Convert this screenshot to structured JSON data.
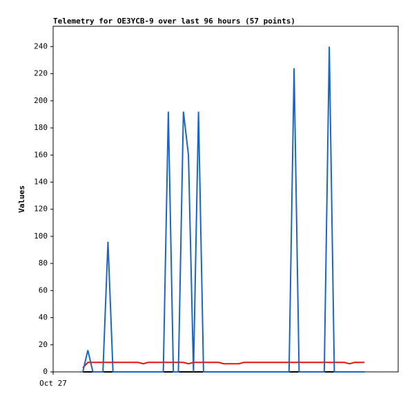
{
  "chart_data": {
    "type": "line",
    "title": "Telemetry for OE3YCB-9 over last 96 hours (57 points)",
    "y_label": "Values",
    "x": [
      0,
      1,
      2,
      3,
      4,
      5,
      6,
      7,
      8,
      9,
      10,
      11,
      12,
      13,
      14,
      15,
      16,
      17,
      18,
      19,
      20,
      21,
      22,
      23,
      24,
      25,
      26,
      27,
      28,
      29,
      30,
      31,
      32,
      33,
      34,
      35,
      36,
      37,
      38,
      39,
      40,
      41,
      42,
      43,
      44,
      45,
      46,
      47,
      48,
      49,
      50,
      51,
      52,
      53,
      54,
      55,
      56
    ],
    "xlim": [
      -5.9,
      62.7
    ],
    "xticks": [
      {
        "value": -5.9,
        "label": "Oct 27"
      }
    ],
    "ylim": [
      0,
      255
    ],
    "yticks": [
      0,
      20,
      40,
      60,
      80,
      100,
      120,
      140,
      160,
      180,
      200,
      220,
      240
    ],
    "series": [
      {
        "color": "#000000",
        "values": [
          0,
          0,
          0,
          0,
          0,
          0,
          0,
          0,
          0,
          0,
          0,
          0,
          0,
          0,
          0,
          0,
          0,
          0,
          0,
          0,
          0,
          0,
          0,
          0,
          0,
          0,
          0,
          0,
          0,
          0,
          0,
          0,
          0,
          0,
          0,
          0,
          0,
          0,
          0,
          0,
          0,
          0,
          0,
          0,
          0,
          0,
          0,
          0,
          0,
          0,
          0,
          0,
          0,
          0,
          0,
          0,
          0
        ]
      },
      {
        "color": "#e8120c",
        "values": [
          3,
          7,
          7,
          7,
          7,
          7,
          7,
          7,
          7,
          7,
          7,
          7,
          6,
          7,
          7,
          7,
          7,
          7,
          7,
          7,
          7,
          6,
          7,
          7,
          7,
          7,
          7,
          7,
          6,
          6,
          6,
          6,
          7,
          7,
          7,
          7,
          7,
          7,
          7,
          7,
          7,
          7,
          7,
          7,
          7,
          7,
          7,
          7,
          7,
          7,
          7,
          7,
          7,
          6,
          7,
          7,
          7
        ]
      },
      {
        "color": "#1a66c4",
        "values": [
          0,
          16,
          0,
          0,
          0,
          96,
          0,
          0,
          0,
          0,
          0,
          0,
          0,
          0,
          0,
          0,
          0,
          192,
          0,
          0,
          192,
          160,
          0,
          192,
          0,
          0,
          0,
          0,
          0,
          0,
          0,
          0,
          0,
          0,
          0,
          0,
          0,
          0,
          0,
          0,
          0,
          0,
          224,
          0,
          0,
          0,
          0,
          0,
          0,
          240,
          0,
          0,
          0,
          0,
          0,
          0,
          0
        ]
      }
    ],
    "grid": false
  }
}
